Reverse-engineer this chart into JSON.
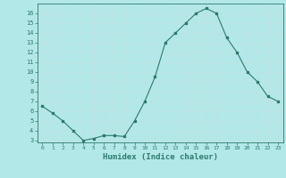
{
  "x": [
    0,
    1,
    2,
    3,
    4,
    5,
    6,
    7,
    8,
    9,
    10,
    11,
    12,
    13,
    14,
    15,
    16,
    17,
    18,
    19,
    20,
    21,
    22,
    23
  ],
  "y": [
    6.5,
    5.8,
    5.0,
    4.0,
    3.0,
    3.2,
    3.5,
    3.5,
    3.4,
    5.0,
    7.0,
    9.5,
    13.0,
    14.0,
    15.0,
    16.0,
    16.5,
    16.0,
    13.5,
    12.0,
    10.0,
    9.0,
    7.5,
    7.0
  ],
  "line_color": "#2d7a6e",
  "marker_color": "#2d7a6e",
  "bg_color": "#b3e8e8",
  "grid_color": "#d8f0f0",
  "xlabel": "Humidex (Indice chaleur)",
  "xlabel_color": "#2d7a6e",
  "tick_color": "#2d7a6e",
  "ylim": [
    2.8,
    17.0
  ],
  "xlim": [
    -0.5,
    23.5
  ],
  "yticks": [
    3,
    4,
    5,
    6,
    7,
    8,
    9,
    10,
    11,
    12,
    13,
    14,
    15,
    16
  ],
  "xticks": [
    0,
    1,
    2,
    3,
    4,
    5,
    6,
    7,
    8,
    9,
    10,
    11,
    12,
    13,
    14,
    15,
    16,
    17,
    18,
    19,
    20,
    21,
    22,
    23
  ]
}
